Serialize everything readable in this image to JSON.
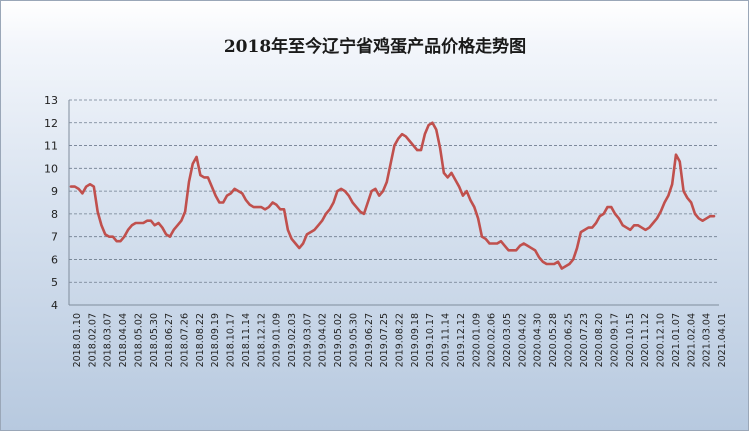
{
  "chart_data": {
    "type": "line",
    "title": "2018年至今辽宁省鸡蛋产品价格走势图",
    "xlabel": "",
    "ylabel": "",
    "ylim": [
      4,
      13
    ],
    "yticks": [
      4,
      5,
      6,
      7,
      8,
      9,
      10,
      11,
      12,
      13
    ],
    "grid": "horizontal-dashed",
    "line_color": "#c0504d",
    "x_tick_labels": [
      "2018.01.10",
      "2018.02.07",
      "2018.03.07",
      "2018.04.04",
      "2018.05.02",
      "2018.05.30",
      "2018.06.27",
      "2018.07.26",
      "2018.08.22",
      "2018.09.19",
      "2018.10.17",
      "2018.11.14",
      "2018.12.12",
      "2019.01.09",
      "2019.02.03",
      "2019.03.07",
      "2019.04.02",
      "2019.05.02",
      "2019.05.30",
      "2019.06.27",
      "2019.07.25",
      "2019.08.22",
      "2019.09.18",
      "2019.10.17",
      "2019.11.14",
      "2019.12.12",
      "2020.01.09",
      "2020.02.06",
      "2020.03.05",
      "2020.04.02",
      "2020.04.30",
      "2020.05.28",
      "2020.06.25",
      "2020.07.23",
      "2020.08.20",
      "2020.09.17",
      "2020.10.15",
      "2020.11.12",
      "2020.12.10",
      "2021.01.07",
      "2021.02.04",
      "2021.03.04",
      "2021.04.01"
    ],
    "series": [
      {
        "values": [
          9.2,
          9.2,
          9.1,
          8.9,
          9.2,
          9.3,
          9.2,
          8.1,
          7.5,
          7.1,
          7.0,
          7.0,
          6.8,
          6.8,
          7.0,
          7.3,
          7.5,
          7.6,
          7.6,
          7.6,
          7.7,
          7.7,
          7.5,
          7.6,
          7.4,
          7.1,
          7.0,
          7.3,
          7.5,
          7.7,
          8.1,
          9.4,
          10.2,
          10.5,
          9.7,
          9.6,
          9.6,
          9.2,
          8.8,
          8.5,
          8.5,
          8.8,
          8.9,
          9.1,
          9.0,
          8.9,
          8.6,
          8.4,
          8.3,
          8.3,
          8.3,
          8.2,
          8.3,
          8.5,
          8.4,
          8.2,
          8.2,
          7.3,
          6.9,
          6.7,
          6.5,
          6.7,
          7.1,
          7.2,
          7.3,
          7.5,
          7.7,
          8.0,
          8.2,
          8.5,
          9.0,
          9.1,
          9.0,
          8.8,
          8.5,
          8.3,
          8.1,
          8.0,
          8.5,
          9.0,
          9.1,
          8.8,
          9.0,
          9.4,
          10.2,
          11.0,
          11.3,
          11.5,
          11.4,
          11.2,
          11.0,
          10.8,
          10.8,
          11.5,
          11.9,
          12.0,
          11.7,
          10.9,
          9.8,
          9.6,
          9.8,
          9.5,
          9.2,
          8.8,
          9.0,
          8.6,
          8.3,
          7.8,
          7.0,
          6.9,
          6.7,
          6.7,
          6.7,
          6.8,
          6.6,
          6.4,
          6.4,
          6.4,
          6.6,
          6.7,
          6.6,
          6.5,
          6.4,
          6.1,
          5.9,
          5.8,
          5.8,
          5.8,
          5.9,
          5.6,
          5.7,
          5.8,
          6.0,
          6.5,
          7.2,
          7.3,
          7.4,
          7.4,
          7.6,
          7.9,
          8.0,
          8.3,
          8.3,
          8.0,
          7.8,
          7.5,
          7.4,
          7.3,
          7.5,
          7.5,
          7.4,
          7.3,
          7.4,
          7.6,
          7.8,
          8.1,
          8.5,
          8.8,
          9.3,
          10.6,
          10.3,
          9.0,
          8.7,
          8.5,
          8.0,
          7.8,
          7.7,
          7.8,
          7.9,
          7.9
        ]
      }
    ]
  }
}
